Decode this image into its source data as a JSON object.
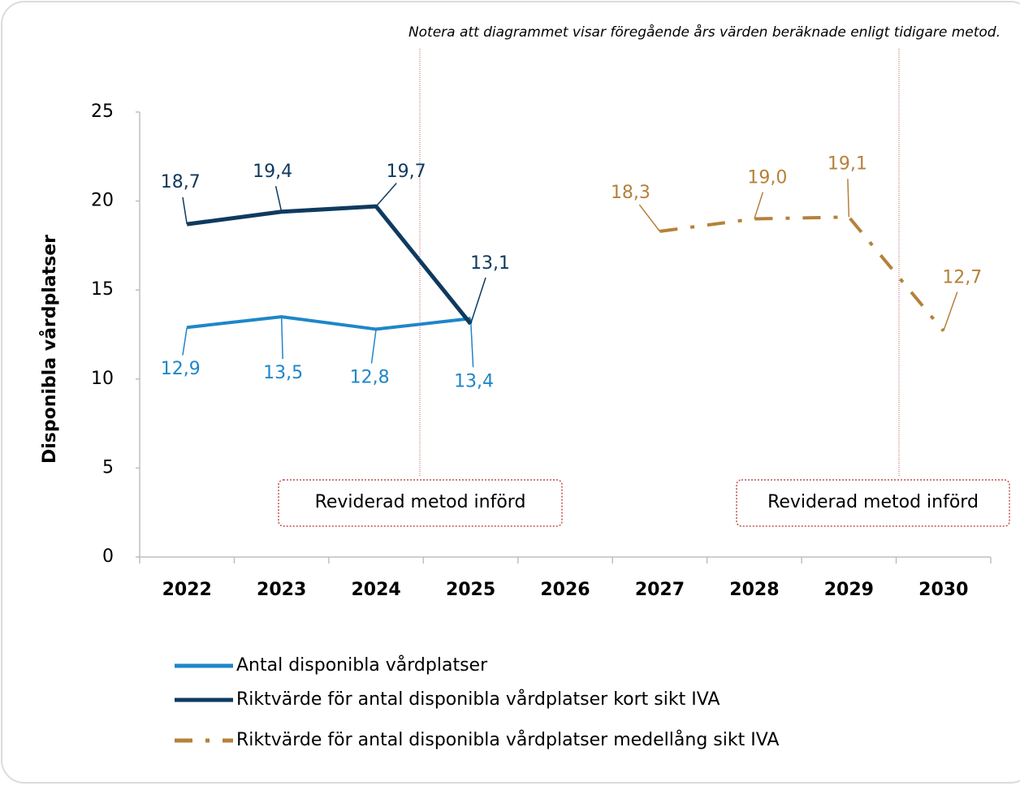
{
  "chart_data": {
    "type": "line",
    "note": "Notera att diagrammet visar föregående års värden beräknade enligt tidigare metod.",
    "y_label": "Disponibla vårdplatser",
    "categories": [
      "2022",
      "2023",
      "2024",
      "2025",
      "2026",
      "2027",
      "2028",
      "2029",
      "2030"
    ],
    "series": [
      {
        "name": "Antal disponibla vårdplatser",
        "color": "#1f86c8",
        "dash": "solid",
        "values": [
          12.9,
          13.5,
          12.8,
          13.4,
          null,
          null,
          null,
          null,
          null
        ],
        "value_labels": [
          "12,9",
          "13,5",
          "12,8",
          "13,4",
          null,
          null,
          null,
          null,
          null
        ]
      },
      {
        "name": "Riktvärde för antal disponibla vårdplatser kort sikt IVA",
        "color": "#0e3a5f",
        "dash": "solid",
        "values": [
          18.7,
          19.4,
          19.7,
          13.1,
          null,
          null,
          null,
          null,
          null
        ],
        "value_labels": [
          "18,7",
          "19,4",
          "19,7",
          "13,1",
          null,
          null,
          null,
          null,
          null
        ]
      },
      {
        "name": "Riktvärde för antal disponibla vårdplatser medellång sikt IVA",
        "color": "#b5813a",
        "dash": "dash-dot",
        "values": [
          null,
          null,
          null,
          null,
          null,
          18.3,
          19.0,
          19.1,
          12.7
        ],
        "value_labels": [
          null,
          null,
          null,
          null,
          null,
          "18,3",
          "19,0",
          "19,1",
          "12,7"
        ]
      }
    ],
    "annotations": [
      "Reviderad metod införd",
      "Reviderad metod införd"
    ],
    "ylim": [
      0,
      25
    ],
    "yticks": [
      0,
      5,
      10,
      15,
      20,
      25
    ],
    "grid": false
  }
}
